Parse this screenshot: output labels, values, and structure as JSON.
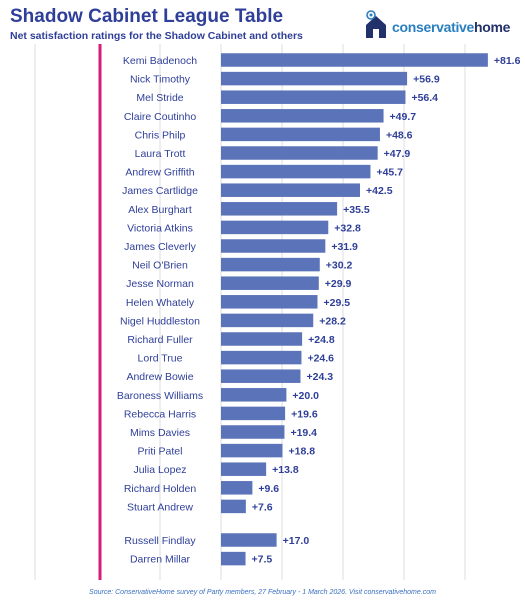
{
  "header": {
    "title": "Shadow Cabinet League Table",
    "subtitle": "Net satisfaction ratings for the Shadow Cabinet and others"
  },
  "logo": {
    "text_part1": "conservative",
    "text_part2": "home",
    "icon": "house-with-tree-icon"
  },
  "source": "Source: ConservativeHome survey of Party members, 27 February - 1 March 2026. Visit conservativehome.com",
  "colors": {
    "bar": "#5b73b8",
    "accent_line": "#d81b78",
    "title": "#2f3f99",
    "label_text": "#2f3f99"
  },
  "chart_data": {
    "type": "bar",
    "orientation": "horizontal",
    "categories": [
      "Kemi Badenoch",
      "Nick Timothy",
      "Mel Stride",
      "Claire Coutinho",
      "Chris Philp",
      "Laura Trott",
      "Andrew Griffith",
      "James Cartlidge",
      "Alex Burghart",
      "Victoria Atkins",
      "James Cleverly",
      "Neil O'Brien",
      "Jesse Norman",
      "Helen Whately",
      "Nigel Huddleston",
      "Richard Fuller",
      "Lord True",
      "Andrew Bowie",
      "Baroness Williams",
      "Rebecca Harris",
      "Mims Davies",
      "Priti Patel",
      "Julia Lopez",
      "Richard Holden",
      "Stuart Andrew",
      "Russell Findlay",
      "Darren Millar"
    ],
    "values": [
      81.6,
      56.9,
      56.4,
      49.7,
      48.6,
      47.9,
      45.7,
      42.5,
      35.5,
      32.8,
      31.9,
      30.2,
      29.9,
      29.5,
      28.2,
      24.8,
      24.6,
      24.3,
      20.0,
      19.6,
      19.4,
      18.8,
      13.8,
      9.6,
      7.6,
      17.0,
      7.5
    ],
    "value_labels": [
      "+81.6",
      "+56.9",
      "+56.4",
      "+49.7",
      "+48.6",
      "+47.9",
      "+45.7",
      "+42.5",
      "+35.5",
      "+32.8",
      "+31.9",
      "+30.2",
      "+29.9",
      "+29.5",
      "+28.2",
      "+24.8",
      "+24.6",
      "+24.3",
      "+20.0",
      "+19.6",
      "+19.4",
      "+18.8",
      "+13.8",
      "+9.6",
      "+7.6",
      "+17.0",
      "+7.5"
    ],
    "groups": [
      25,
      2
    ],
    "xlim": [
      0,
      85
    ],
    "grid": true
  }
}
